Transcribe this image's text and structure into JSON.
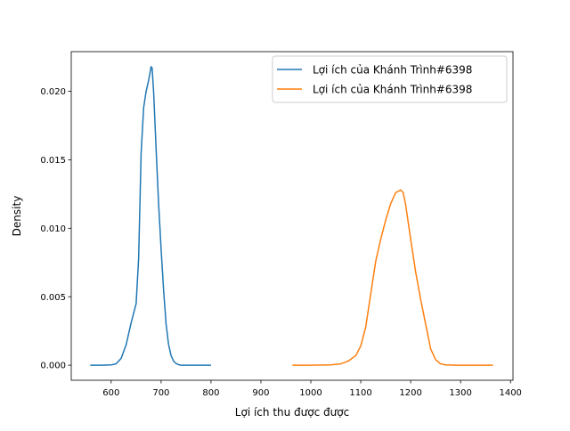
{
  "chart_data": {
    "type": "line",
    "title": "",
    "xlabel": "Lợi ích thu được được",
    "ylabel": "Density",
    "xlim": [
      520,
      1405
    ],
    "ylim": [
      -0.0011,
      0.0229
    ],
    "xticks": [
      600,
      700,
      800,
      900,
      1000,
      1100,
      1200,
      1300,
      1400
    ],
    "yticks": [
      0.0,
      0.005,
      0.01,
      0.015,
      0.02
    ],
    "ytick_labels": [
      "0.000",
      "0.005",
      "0.010",
      "0.015",
      "0.020"
    ],
    "grid": false,
    "legend_position": "top-right",
    "series": [
      {
        "name": "Lợi ích của Khánh Trình#6398",
        "color": "#1f77b4",
        "x": [
          558,
          580,
          600,
          610,
          620,
          630,
          640,
          650,
          655,
          660,
          665,
          670,
          675,
          680,
          682,
          685,
          690,
          695,
          700,
          705,
          710,
          715,
          720,
          725,
          730,
          735,
          740,
          750,
          760,
          780,
          800
        ],
        "y": [
          0.0,
          0.0,
          2e-05,
          0.0001,
          0.0005,
          0.0015,
          0.0031,
          0.0045,
          0.0078,
          0.0155,
          0.0188,
          0.02,
          0.0208,
          0.0218,
          0.0217,
          0.02,
          0.0158,
          0.0118,
          0.0085,
          0.0055,
          0.003,
          0.0015,
          0.0007,
          0.0003,
          0.00012,
          4e-05,
          0.0,
          0.0,
          0.0,
          0.0,
          0.0
        ]
      },
      {
        "name": "Lợi ích của Khánh Trình#6398",
        "color": "#ff7f0e",
        "x": [
          963,
          1000,
          1040,
          1060,
          1075,
          1090,
          1100,
          1110,
          1120,
          1130,
          1140,
          1150,
          1160,
          1170,
          1180,
          1185,
          1190,
          1200,
          1210,
          1220,
          1230,
          1240,
          1250,
          1260,
          1270,
          1290,
          1320,
          1365
        ],
        "y": [
          0.0,
          0.0,
          2e-05,
          0.0001,
          0.0003,
          0.0007,
          0.0014,
          0.0028,
          0.0052,
          0.0076,
          0.0092,
          0.0106,
          0.0118,
          0.0126,
          0.0128,
          0.0126,
          0.0117,
          0.0092,
          0.0068,
          0.0048,
          0.003,
          0.0012,
          0.0004,
          0.0001,
          2e-05,
          0.0,
          0.0,
          0.0
        ]
      }
    ]
  }
}
